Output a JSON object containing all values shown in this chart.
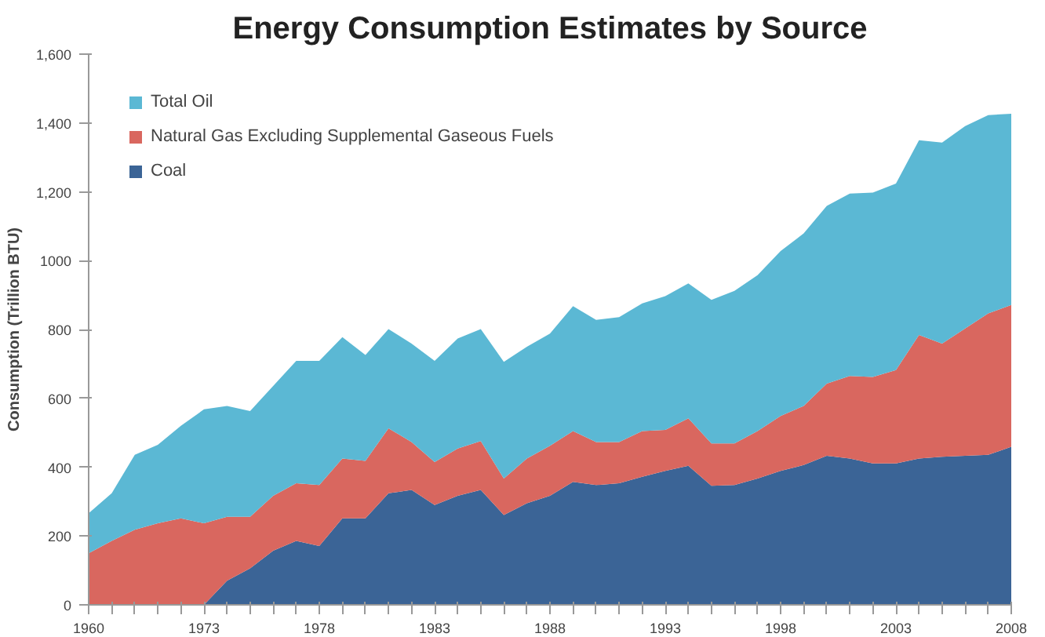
{
  "chart_data": {
    "type": "area",
    "stacked": true,
    "title": "Energy Consumption Estimates by Source",
    "ylabel": "Consumption (Trillion BTU)",
    "categories": [
      "1960",
      null,
      null,
      null,
      null,
      "1973",
      null,
      null,
      null,
      null,
      "1978",
      null,
      null,
      null,
      null,
      "1983",
      null,
      null,
      null,
      null,
      "1988",
      null,
      null,
      null,
      null,
      "1993",
      null,
      null,
      null,
      null,
      "1998",
      null,
      null,
      null,
      null,
      "2003",
      null,
      null,
      null,
      null,
      "2008"
    ],
    "series": [
      {
        "name": "Coal",
        "color": "#3b6496",
        "values": [
          0,
          0,
          0,
          0,
          0,
          0,
          70,
          106,
          157,
          186,
          171,
          251,
          251,
          324,
          334,
          290,
          317,
          334,
          261,
          295,
          317,
          357,
          348,
          353,
          372,
          389,
          404,
          346,
          348,
          367,
          389,
          406,
          433,
          425,
          411,
          411,
          425,
          430,
          433,
          436,
          459
        ]
      },
      {
        "name": "Natural Gas Excluding Supplemental Gaseous Fuels",
        "color": "#d9675f",
        "values": [
          150,
          186,
          218,
          237,
          251,
          237,
          186,
          150,
          160,
          167,
          177,
          174,
          167,
          189,
          139,
          125,
          137,
          142,
          106,
          130,
          145,
          148,
          125,
          120,
          133,
          119,
          138,
          123,
          121,
          138,
          160,
          172,
          210,
          240,
          251,
          271,
          359,
          329,
          370,
          411,
          412
        ]
      },
      {
        "name": "Total Oil",
        "color": "#5bb8d4",
        "values": [
          116,
          138,
          218,
          228,
          269,
          331,
          322,
          307,
          319,
          356,
          361,
          353,
          308,
          288,
          286,
          294,
          320,
          325,
          339,
          325,
          326,
          363,
          355,
          363,
          371,
          389,
          392,
          417,
          443,
          453,
          479,
          501,
          516,
          530,
          536,
          542,
          566,
          584,
          588,
          576,
          556
        ]
      }
    ],
    "ylim": [
      0,
      1600
    ],
    "yticks": [
      0,
      200,
      400,
      600,
      800,
      1000,
      {
        "value": 1200,
        "label": "1,200"
      },
      {
        "value": 1400,
        "label": "1,400"
      },
      {
        "value": 1600,
        "label": "1,600"
      }
    ],
    "grid": false,
    "legend": "top left"
  }
}
